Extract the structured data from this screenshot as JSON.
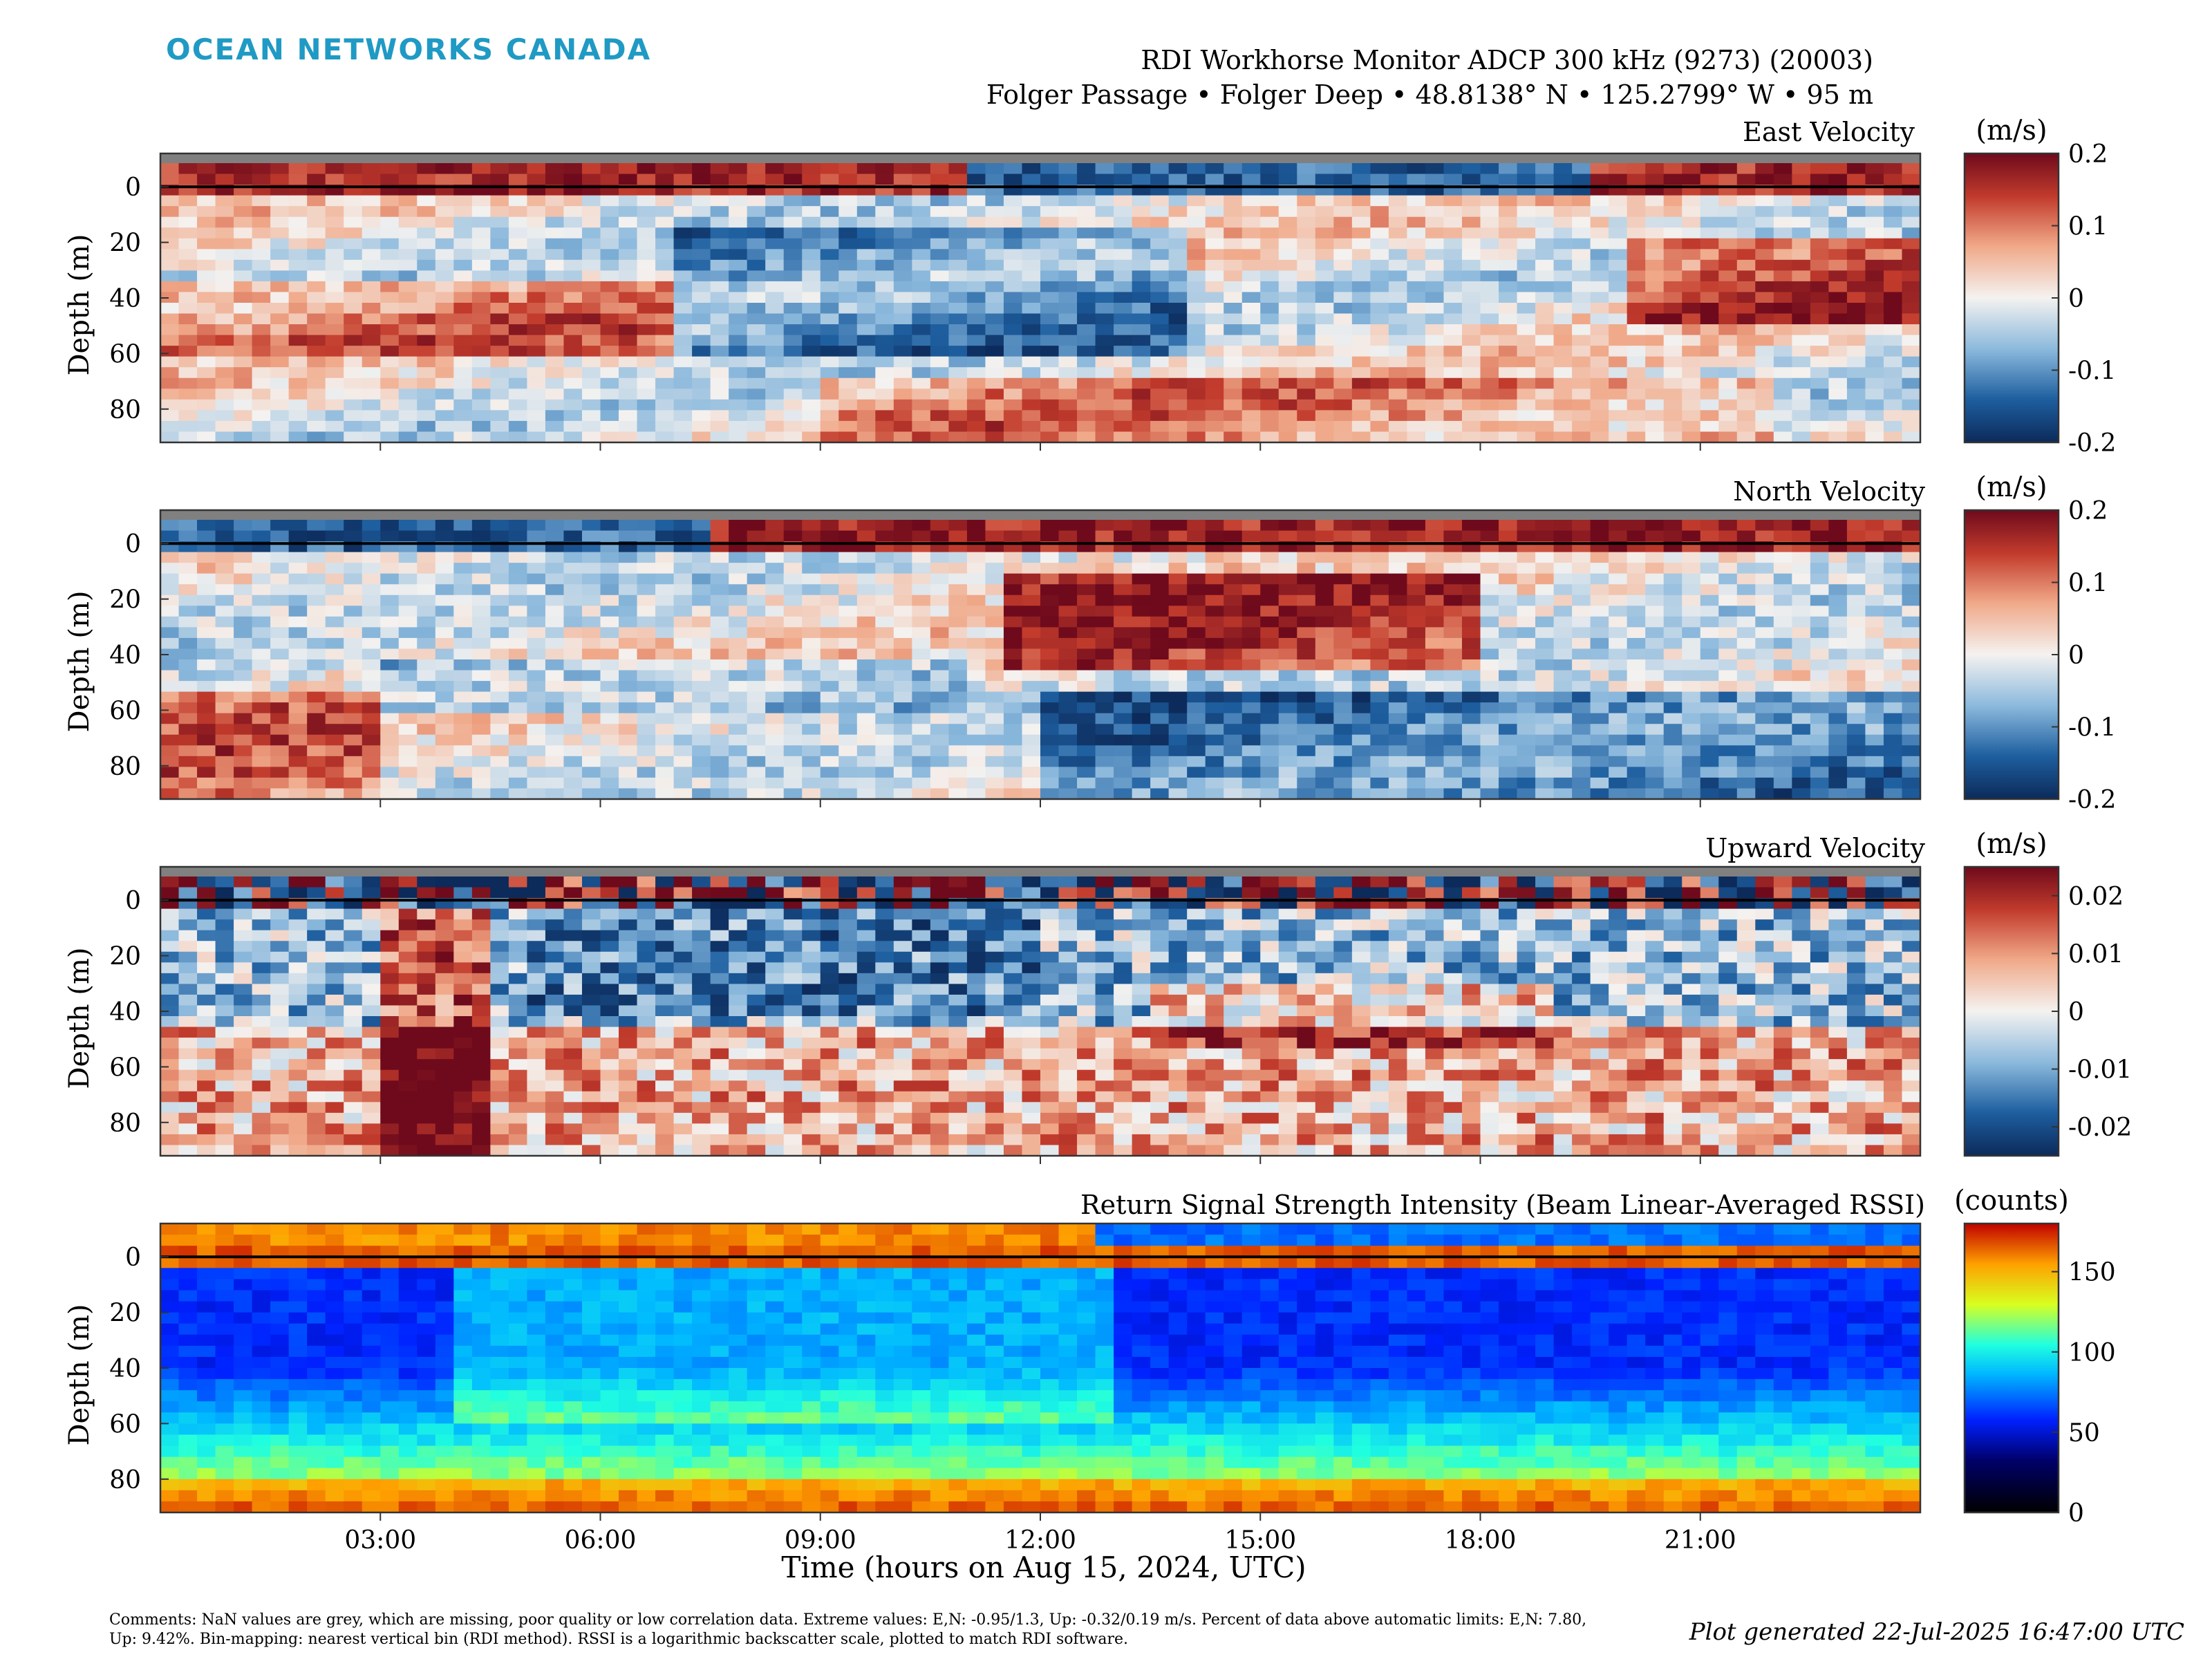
{
  "branding": {
    "logo_text": "OCEAN NETWORKS CANADA",
    "logo_color": "#1f9ac4"
  },
  "header": {
    "title": "RDI Workhorse Monitor ADCP 300 kHz (9273) (20003)",
    "subtitle": "Folger Passage • Folger Deep • 48.8138° N • 125.2799° W • 95 m"
  },
  "footer": {
    "comments": "Comments: NaN values are grey, which are missing, poor quality or low correlation data. Extreme values: E,N: -0.95/1.3, Up: -0.32/0.19 m/s. Percent of data above automatic limits: E,N: 7.80, Up: 9.42%. Bin-mapping: nearest vertical bin (RDI method). RSSI is a logarithmic backscatter scale, plotted to match RDI software.",
    "generated": "Plot generated 22-Jul-2025 16:47:00 UTC"
  },
  "chart_data": [
    {
      "type": "heatmap",
      "title": "East Velocity",
      "ylabel": "Depth (m)",
      "xlabel": "",
      "x_ticks": [
        "03:00",
        "06:00",
        "09:00",
        "12:00",
        "15:00",
        "18:00",
        "21:00"
      ],
      "y_ticks": [
        "0",
        "20",
        "40",
        "60",
        "80"
      ],
      "ylim": [
        -12,
        92
      ],
      "colorbar": {
        "unit": "(m/s)",
        "ticks": [
          "0.2",
          "0.1",
          "0",
          "-0.1",
          "-0.2"
        ],
        "range": [
          -0.2,
          0.2
        ],
        "colormap": "balance (blue-white-red)"
      }
    },
    {
      "type": "heatmap",
      "title": "North Velocity",
      "ylabel": "Depth (m)",
      "xlabel": "",
      "x_ticks": [
        "03:00",
        "06:00",
        "09:00",
        "12:00",
        "15:00",
        "18:00",
        "21:00"
      ],
      "y_ticks": [
        "0",
        "20",
        "40",
        "60",
        "80"
      ],
      "ylim": [
        -12,
        92
      ],
      "colorbar": {
        "unit": "(m/s)",
        "ticks": [
          "0.2",
          "0.1",
          "0",
          "-0.1",
          "-0.2"
        ],
        "range": [
          -0.2,
          0.2
        ],
        "colormap": "balance (blue-white-red)"
      }
    },
    {
      "type": "heatmap",
      "title": "Upward Velocity",
      "ylabel": "Depth (m)",
      "xlabel": "",
      "x_ticks": [
        "03:00",
        "06:00",
        "09:00",
        "12:00",
        "15:00",
        "18:00",
        "21:00"
      ],
      "y_ticks": [
        "0",
        "20",
        "40",
        "60",
        "80"
      ],
      "ylim": [
        -12,
        92
      ],
      "colorbar": {
        "unit": "(m/s)",
        "ticks": [
          "0.02",
          "0.01",
          "0",
          "-0.01",
          "-0.02"
        ],
        "range": [
          -0.025,
          0.025
        ],
        "colormap": "balance (blue-white-red)"
      }
    },
    {
      "type": "heatmap",
      "title": "Return Signal Strength Intensity (Beam Linear-Averaged RSSI)",
      "ylabel": "Depth (m)",
      "xlabel": "Time (hours on Aug 15, 2024, UTC)",
      "x_ticks": [
        "03:00",
        "06:00",
        "09:00",
        "12:00",
        "15:00",
        "18:00",
        "21:00"
      ],
      "y_ticks": [
        "0",
        "20",
        "40",
        "60",
        "80"
      ],
      "ylim": [
        -12,
        92
      ],
      "colorbar": {
        "unit": "(counts)",
        "ticks": [
          "150",
          "100",
          "50",
          "0"
        ],
        "range": [
          0,
          180
        ],
        "colormap": "jet (black-blue-cyan-yellow-red)"
      }
    }
  ]
}
